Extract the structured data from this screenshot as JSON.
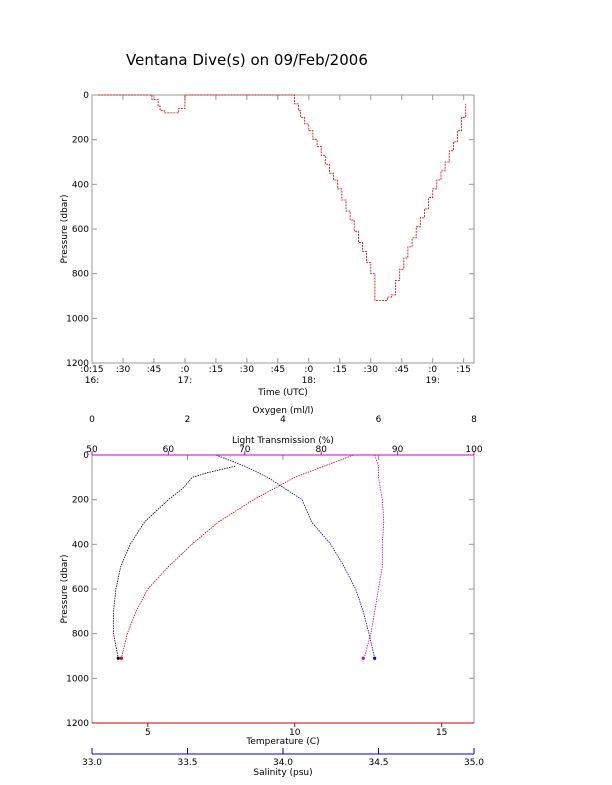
{
  "page": {
    "title": "Ventana Dive(s) on 09/Feb/2006"
  },
  "chart_data": [
    {
      "type": "line",
      "title": "Ventana Dive(s) on 09/Feb/2006",
      "xlabel": "Time (UTC)",
      "ylabel": "Pressure (dbar)",
      "x_unit": "minutes since 16:00 UTC",
      "xlim": [
        15,
        200
      ],
      "ylim": [
        1200,
        0
      ],
      "y_ticks": [
        0,
        200,
        400,
        600,
        800,
        1000,
        1200
      ],
      "x_ticks": [
        {
          "x": 15,
          "minute": ":0:15",
          "hour": "16:"
        },
        {
          "x": 30,
          "minute": ":30",
          "hour": ""
        },
        {
          "x": 45,
          "minute": ":45",
          "hour": ""
        },
        {
          "x": 60,
          "minute": ":0",
          "hour": "17:"
        },
        {
          "x": 75,
          "minute": ":15",
          "hour": ""
        },
        {
          "x": 90,
          "minute": ":30",
          "hour": ""
        },
        {
          "x": 105,
          "minute": ":45",
          "hour": ""
        },
        {
          "x": 120,
          "minute": ":0",
          "hour": "18:"
        },
        {
          "x": 135,
          "minute": ":15",
          "hour": ""
        },
        {
          "x": 150,
          "minute": ":30",
          "hour": ""
        },
        {
          "x": 165,
          "minute": ":45",
          "hour": ""
        },
        {
          "x": 180,
          "minute": ":0",
          "hour": "19:"
        },
        {
          "x": 195,
          "minute": ":15",
          "hour": ""
        }
      ],
      "series": [
        {
          "color": "#cc0000",
          "x": [
            18,
            30,
            40,
            44,
            47,
            48,
            50,
            52,
            55,
            57,
            60,
            90,
            110,
            113,
            115,
            116,
            118,
            120,
            122,
            124,
            126,
            128,
            130,
            132,
            134,
            136,
            138,
            140,
            142,
            144,
            146,
            148,
            150,
            152,
            158,
            160,
            162,
            164,
            166,
            168,
            170,
            172,
            174,
            176,
            178,
            180,
            182,
            184,
            186,
            188,
            190,
            192,
            194,
            196
          ],
          "y": [
            0,
            0,
            0,
            20,
            50,
            70,
            80,
            80,
            80,
            60,
            0,
            0,
            0,
            40,
            70,
            100,
            130,
            160,
            200,
            230,
            270,
            310,
            350,
            380,
            420,
            470,
            520,
            560,
            610,
            660,
            700,
            750,
            800,
            920,
            905,
            895,
            830,
            780,
            730,
            680,
            640,
            590,
            550,
            510,
            460,
            420,
            380,
            340,
            300,
            250,
            210,
            160,
            100,
            40
          ]
        }
      ]
    },
    {
      "type": "line",
      "ylabel": "Pressure (dbar)",
      "ylim": [
        1200,
        0
      ],
      "y_ticks": [
        0,
        200,
        400,
        600,
        800,
        1000,
        1200
      ],
      "axes": {
        "oxygen": {
          "label": "Oxygen (ml/l)",
          "range": [
            0,
            8
          ],
          "ticks": [
            0,
            2,
            4,
            6,
            8
          ],
          "color": "#000000"
        },
        "transmission": {
          "label": "Light Transmission (%)",
          "range": [
            50,
            100
          ],
          "ticks": [
            50,
            60,
            70,
            80,
            90,
            100
          ],
          "color": "#cc00cc"
        },
        "temperature": {
          "label": "Temperature (C)",
          "range": [
            3.1,
            16.1
          ],
          "ticks": [
            5,
            10,
            15
          ],
          "color": "#cc0000"
        },
        "salinity": {
          "label": "Salinity (psu)",
          "range": [
            33.0,
            35.0
          ],
          "tick_labels": [
            "33.0",
            "33.5",
            "34.0",
            "34.5",
            "35.0"
          ],
          "ticks": [
            33.0,
            33.5,
            34.0,
            34.5,
            35.0
          ],
          "color": "#0000cc"
        }
      },
      "series": [
        {
          "axis": "oxygen",
          "color": "#000000",
          "pressure": [
            50,
            80,
            100,
            150,
            200,
            300,
            400,
            500,
            600,
            700,
            800,
            910
          ],
          "values": [
            3.0,
            2.4,
            2.1,
            1.9,
            1.6,
            1.1,
            0.8,
            0.6,
            0.5,
            0.45,
            0.45,
            0.55
          ]
        },
        {
          "axis": "transmission",
          "color": "#cc00cc",
          "pressure": [
            0,
            50,
            100,
            200,
            300,
            400,
            500,
            600,
            700,
            800,
            900,
            910
          ],
          "values": [
            87.0,
            87.5,
            87.5,
            88.0,
            88.2,
            88.0,
            88.0,
            87.5,
            87.0,
            86.5,
            85.7,
            85.5
          ]
        },
        {
          "axis": "temperature",
          "color": "#cc0000",
          "pressure": [
            0,
            100,
            150,
            200,
            250,
            300,
            400,
            500,
            600,
            700,
            800,
            910
          ],
          "values": [
            12.0,
            10.0,
            9.3,
            8.6,
            8.0,
            7.4,
            6.5,
            5.7,
            5.0,
            4.6,
            4.3,
            4.1
          ]
        },
        {
          "axis": "salinity",
          "color": "#0000cc",
          "pressure": [
            0,
            50,
            100,
            200,
            300,
            400,
            500,
            600,
            700,
            800,
            910
          ],
          "values": [
            33.65,
            33.8,
            33.92,
            34.1,
            34.15,
            34.25,
            34.32,
            34.38,
            34.42,
            34.45,
            34.48
          ]
        }
      ]
    }
  ]
}
